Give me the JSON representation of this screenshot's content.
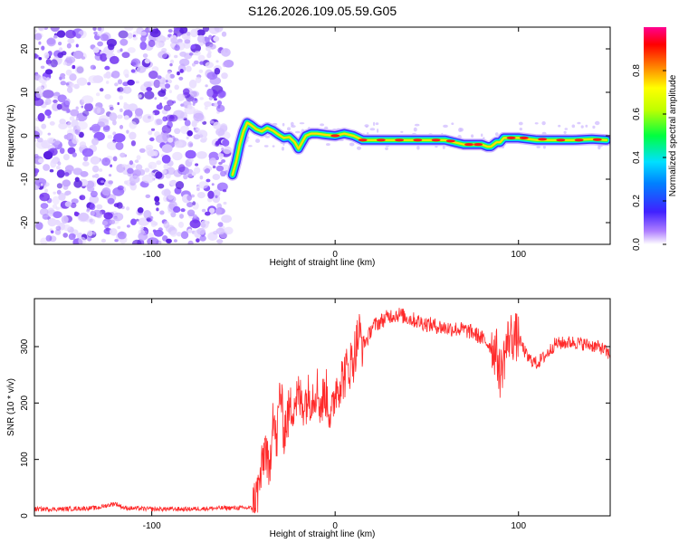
{
  "figure_title": "S126.2026.109.05.59.G05",
  "chart_data": [
    {
      "type": "heatmap",
      "name": "spectrogram",
      "xlabel": "Height of straight line (km)",
      "ylabel": "Frequency (Hz)",
      "xlim": [
        -164,
        150
      ],
      "ylim": [
        -25,
        25
      ],
      "xticks": [
        -100,
        0,
        100
      ],
      "yticks": [
        20,
        10,
        0,
        -10,
        -20
      ],
      "noise_region_x": [
        -164,
        -58
      ],
      "ridge": {
        "x": [
          -56,
          -54,
          -52,
          -50,
          -48,
          -46,
          -43,
          -40,
          -37,
          -34,
          -31,
          -28,
          -25,
          -22,
          -20,
          -18,
          -16,
          -13,
          -10,
          -5,
          0,
          5,
          10,
          15,
          20,
          30,
          40,
          50,
          60,
          65,
          70,
          75,
          80,
          83,
          85,
          88,
          90,
          92,
          95,
          100,
          110,
          120,
          130,
          140,
          148
        ],
        "y": [
          -9,
          -6,
          -2,
          1,
          3,
          2.5,
          1.5,
          1,
          1.8,
          1.2,
          0.3,
          -0.5,
          -0.3,
          -1.5,
          -3,
          -1.5,
          0,
          0.5,
          0.5,
          0.2,
          0,
          0.5,
          0,
          -1,
          -1,
          -1,
          -1,
          -1,
          -1,
          -1.5,
          -2,
          -2,
          -2,
          -2.5,
          -2.5,
          -1.5,
          -1.5,
          -0.5,
          -0.5,
          -0.5,
          -1,
          -1,
          -1,
          -0.8,
          -1
        ]
      },
      "colorbar": {
        "label": "Normalized spectral amplitude",
        "ticks": [
          0.0,
          0.2,
          0.4,
          0.6,
          0.8
        ],
        "tick_labels": [
          "0.0",
          "0.2",
          "0.4",
          "0.6",
          "0.8"
        ],
        "range": [
          0,
          1
        ],
        "colors": [
          "#ffffff",
          "#8040ff",
          "#2020ff",
          "#00d0ff",
          "#00ff40",
          "#c0ff00",
          "#ffff00",
          "#ff8000",
          "#ff0000",
          "#ff0090"
        ]
      }
    },
    {
      "type": "line",
      "name": "snr",
      "xlabel": "Height of straight line (km)",
      "ylabel": "SNR (10 * v/v)",
      "xlim": [
        -164,
        150
      ],
      "ylim": [
        0,
        385
      ],
      "xticks": [
        -100,
        0,
        100
      ],
      "yticks": [
        0,
        100,
        200,
        300
      ],
      "line_color": "#ff2a2a",
      "series": [
        {
          "name": "SNR",
          "x": [
            -164,
            -150,
            -130,
            -120,
            -115,
            -100,
            -80,
            -60,
            -45,
            -42,
            -40,
            -38,
            -36,
            -34,
            -32,
            -30,
            -28,
            -25,
            -22,
            -20,
            -18,
            -15,
            -12,
            -10,
            -8,
            -5,
            -2,
            0,
            3,
            6,
            10,
            13,
            15,
            18,
            20,
            25,
            30,
            35,
            40,
            50,
            60,
            70,
            75,
            80,
            85,
            88,
            90,
            92,
            95,
            100,
            105,
            110,
            115,
            120,
            130,
            140,
            145,
            150
          ],
          "y": [
            12,
            12,
            14,
            22,
            14,
            12,
            12,
            14,
            14,
            45,
            80,
            130,
            60,
            195,
            120,
            230,
            150,
            185,
            205,
            210,
            200,
            210,
            215,
            230,
            195,
            220,
            170,
            225,
            240,
            255,
            280,
            325,
            305,
            315,
            335,
            345,
            355,
            357,
            350,
            340,
            333,
            330,
            325,
            315,
            300,
            290,
            250,
            280,
            320,
            315,
            280,
            270,
            285,
            305,
            308,
            302,
            298,
            285
          ]
        }
      ]
    }
  ]
}
